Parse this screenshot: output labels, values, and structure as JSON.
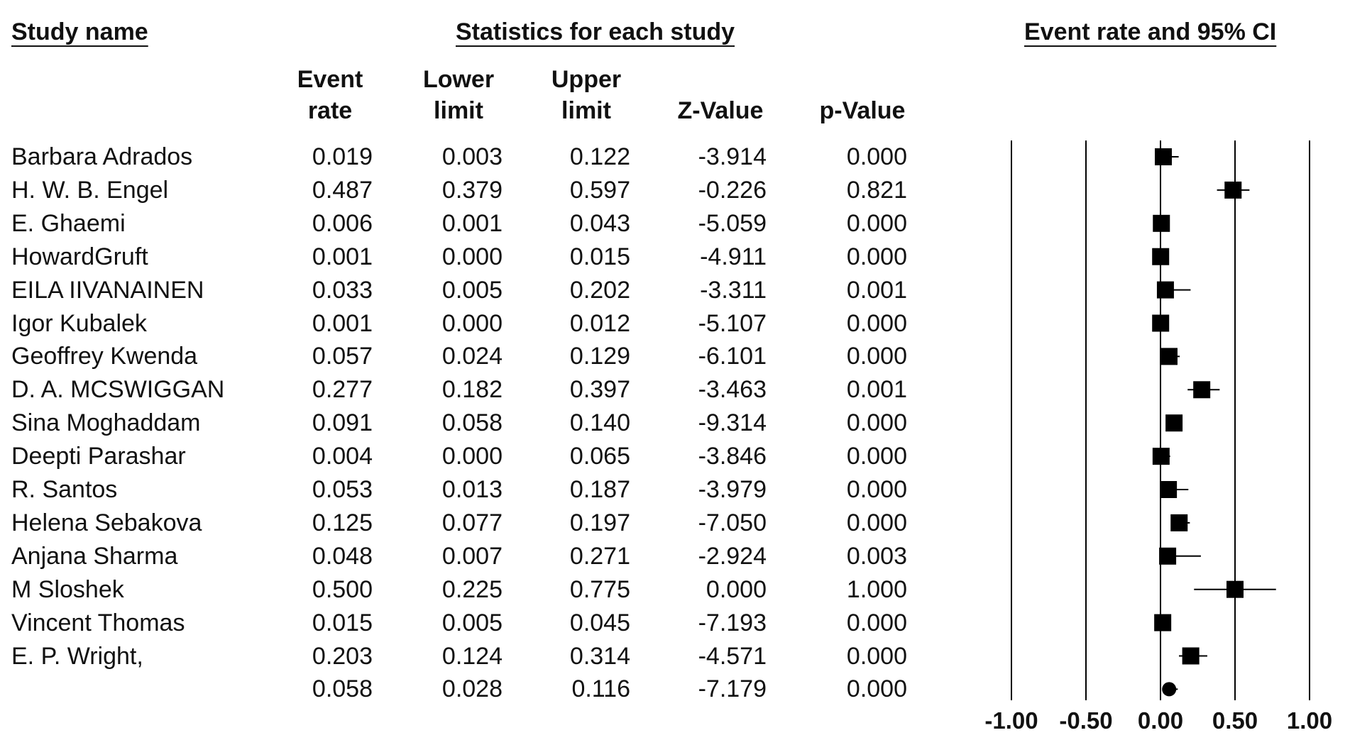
{
  "headers": {
    "study_name": "Study name",
    "statistics": "Statistics for each study",
    "plot": "Event rate and 95% CI"
  },
  "columns": {
    "event_rate": [
      "Event",
      "rate"
    ],
    "lower_limit": [
      "Lower",
      "limit"
    ],
    "upper_limit": [
      "Upper",
      "limit"
    ],
    "z_value": "Z-Value",
    "p_value": "p-Value"
  },
  "rows": [
    {
      "study": "Barbara Adrados",
      "rate": "0.019",
      "lower": "0.003",
      "upper": "0.122",
      "z": "-3.914",
      "p": "0.000"
    },
    {
      "study": "H. W. B. Engel",
      "rate": "0.487",
      "lower": "0.379",
      "upper": "0.597",
      "z": "-0.226",
      "p": "0.821"
    },
    {
      "study": "E. Ghaemi",
      "rate": "0.006",
      "lower": "0.001",
      "upper": "0.043",
      "z": "-5.059",
      "p": "0.000"
    },
    {
      "study": "HowardGruft",
      "rate": "0.001",
      "lower": "0.000",
      "upper": "0.015",
      "z": "-4.911",
      "p": "0.000"
    },
    {
      "study": "EILA IIVANAINEN",
      "rate": "0.033",
      "lower": "0.005",
      "upper": "0.202",
      "z": "-3.311",
      "p": "0.001"
    },
    {
      "study": "Igor Kubalek",
      "rate": "0.001",
      "lower": "0.000",
      "upper": "0.012",
      "z": "-5.107",
      "p": "0.000"
    },
    {
      "study": "Geoffrey Kwenda",
      "rate": "0.057",
      "lower": "0.024",
      "upper": "0.129",
      "z": "-6.101",
      "p": "0.000"
    },
    {
      "study": "D. A. MCSWIGGAN",
      "rate": "0.277",
      "lower": "0.182",
      "upper": "0.397",
      "z": "-3.463",
      "p": "0.001"
    },
    {
      "study": "Sina Moghaddam",
      "rate": "0.091",
      "lower": "0.058",
      "upper": "0.140",
      "z": "-9.314",
      "p": "0.000"
    },
    {
      "study": "Deepti Parashar",
      "rate": "0.004",
      "lower": "0.000",
      "upper": "0.065",
      "z": "-3.846",
      "p": "0.000"
    },
    {
      "study": "R. Santos",
      "rate": "0.053",
      "lower": "0.013",
      "upper": "0.187",
      "z": "-3.979",
      "p": "0.000"
    },
    {
      "study": "Helena Sebakova",
      "rate": "0.125",
      "lower": "0.077",
      "upper": "0.197",
      "z": "-7.050",
      "p": "0.000"
    },
    {
      "study": "Anjana Sharma",
      "rate": "0.048",
      "lower": "0.007",
      "upper": "0.271",
      "z": "-2.924",
      "p": "0.003"
    },
    {
      "study": "M Sloshek",
      "rate": "0.500",
      "lower": "0.225",
      "upper": "0.775",
      "z": "0.000",
      "p": "1.000"
    },
    {
      "study": "Vincent Thomas",
      "rate": "0.015",
      "lower": "0.005",
      "upper": "0.045",
      "z": "-7.193",
      "p": "0.000"
    },
    {
      "study": "E. P. Wright,",
      "rate": "0.203",
      "lower": "0.124",
      "upper": "0.314",
      "z": "-4.571",
      "p": "0.000"
    },
    {
      "study": "",
      "rate": "0.058",
      "lower": "0.028",
      "upper": "0.116",
      "z": "-7.179",
      "p": "0.000"
    }
  ],
  "chart_data": {
    "type": "scatter",
    "subtype": "forest-plot",
    "title": "Event rate and 95% CI",
    "xlabel": "",
    "ylabel": "",
    "xlim": [
      -1.0,
      1.0
    ],
    "x_ticks": [
      "-1.00",
      "-0.50",
      "0.00",
      "0.50",
      "1.00"
    ],
    "x_tick_values": [
      -1.0,
      -0.5,
      0.0,
      0.5,
      1.0
    ],
    "grid": true,
    "points": [
      {
        "study": "Barbara Adrados",
        "estimate": 0.019,
        "lower": 0.003,
        "upper": 0.122,
        "marker": "square"
      },
      {
        "study": "H. W. B. Engel",
        "estimate": 0.487,
        "lower": 0.379,
        "upper": 0.597,
        "marker": "square"
      },
      {
        "study": "E. Ghaemi",
        "estimate": 0.006,
        "lower": 0.001,
        "upper": 0.043,
        "marker": "square"
      },
      {
        "study": "HowardGruft",
        "estimate": 0.001,
        "lower": 0.0,
        "upper": 0.015,
        "marker": "square"
      },
      {
        "study": "EILA IIVANAINEN",
        "estimate": 0.033,
        "lower": 0.005,
        "upper": 0.202,
        "marker": "square"
      },
      {
        "study": "Igor Kubalek",
        "estimate": 0.001,
        "lower": 0.0,
        "upper": 0.012,
        "marker": "square"
      },
      {
        "study": "Geoffrey Kwenda",
        "estimate": 0.057,
        "lower": 0.024,
        "upper": 0.129,
        "marker": "square"
      },
      {
        "study": "D. A. MCSWIGGAN",
        "estimate": 0.277,
        "lower": 0.182,
        "upper": 0.397,
        "marker": "square"
      },
      {
        "study": "Sina Moghaddam",
        "estimate": 0.091,
        "lower": 0.058,
        "upper": 0.14,
        "marker": "square"
      },
      {
        "study": "Deepti Parashar",
        "estimate": 0.004,
        "lower": 0.0,
        "upper": 0.065,
        "marker": "square"
      },
      {
        "study": "R. Santos",
        "estimate": 0.053,
        "lower": 0.013,
        "upper": 0.187,
        "marker": "square"
      },
      {
        "study": "Helena Sebakova",
        "estimate": 0.125,
        "lower": 0.077,
        "upper": 0.197,
        "marker": "square"
      },
      {
        "study": "Anjana Sharma",
        "estimate": 0.048,
        "lower": 0.007,
        "upper": 0.271,
        "marker": "square"
      },
      {
        "study": "M Sloshek",
        "estimate": 0.5,
        "lower": 0.225,
        "upper": 0.775,
        "marker": "square"
      },
      {
        "study": "Vincent Thomas",
        "estimate": 0.015,
        "lower": 0.005,
        "upper": 0.045,
        "marker": "square"
      },
      {
        "study": "E. P. Wright,",
        "estimate": 0.203,
        "lower": 0.124,
        "upper": 0.314,
        "marker": "square"
      },
      {
        "study": "",
        "estimate": 0.058,
        "lower": 0.028,
        "upper": 0.116,
        "marker": "circle"
      }
    ],
    "colors": {
      "marks": "#000000",
      "grid": "#000000",
      "text": "#111111"
    }
  }
}
